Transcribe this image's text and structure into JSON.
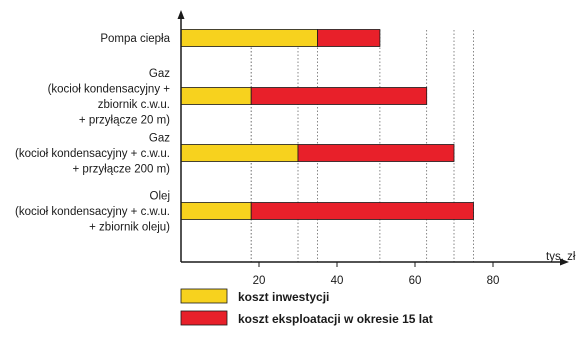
{
  "chart_data": {
    "type": "bar",
    "orientation": "horizontal",
    "stacked": true,
    "xunit": "tys. zł",
    "xlim": [
      0,
      85
    ],
    "xticks": [
      20,
      40,
      60,
      80
    ],
    "categories": [
      [
        "Pompa ciepła"
      ],
      [
        "Gaz",
        "(kocioł kondensacyjny +",
        "zbiornik c.w.u.",
        "+ przyłącze 20 m)"
      ],
      [
        "Gaz",
        "(kocioł kondensacyjny + c.w.u.",
        "+ przyłącze 200 m)"
      ],
      [
        "Olej",
        "(kocioł kondensacyjny + c.w.u.",
        "+ zbiornik oleju)"
      ]
    ],
    "series": [
      {
        "name": "koszt inwestycji",
        "color": "#f7d21e",
        "values": [
          35,
          18,
          30,
          18
        ]
      },
      {
        "name": "koszt eksploatacji w okresie 15 lat",
        "color": "#e8202a",
        "values": [
          16,
          45,
          40,
          57
        ]
      }
    ]
  }
}
